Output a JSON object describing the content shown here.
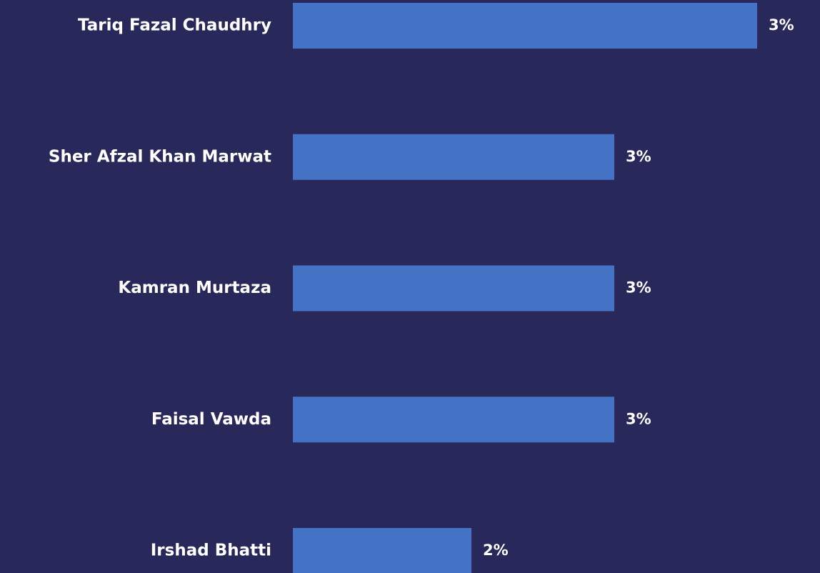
{
  "chart_data": {
    "type": "bar",
    "orientation": "horizontal",
    "categories": [
      "Tariq Fazal Chaudhry",
      "Sher Afzal Khan Marwat",
      "Kamran Murtaza",
      "Faisal Vawda",
      "Irshad Bhatti"
    ],
    "values": [
      3.04,
      2.72,
      2.72,
      2.72,
      2.4
    ],
    "value_labels": [
      "3%",
      "3%",
      "3%",
      "3%",
      "2%"
    ],
    "color": "#4472c4",
    "xlim": [
      2,
      3.1
    ]
  }
}
